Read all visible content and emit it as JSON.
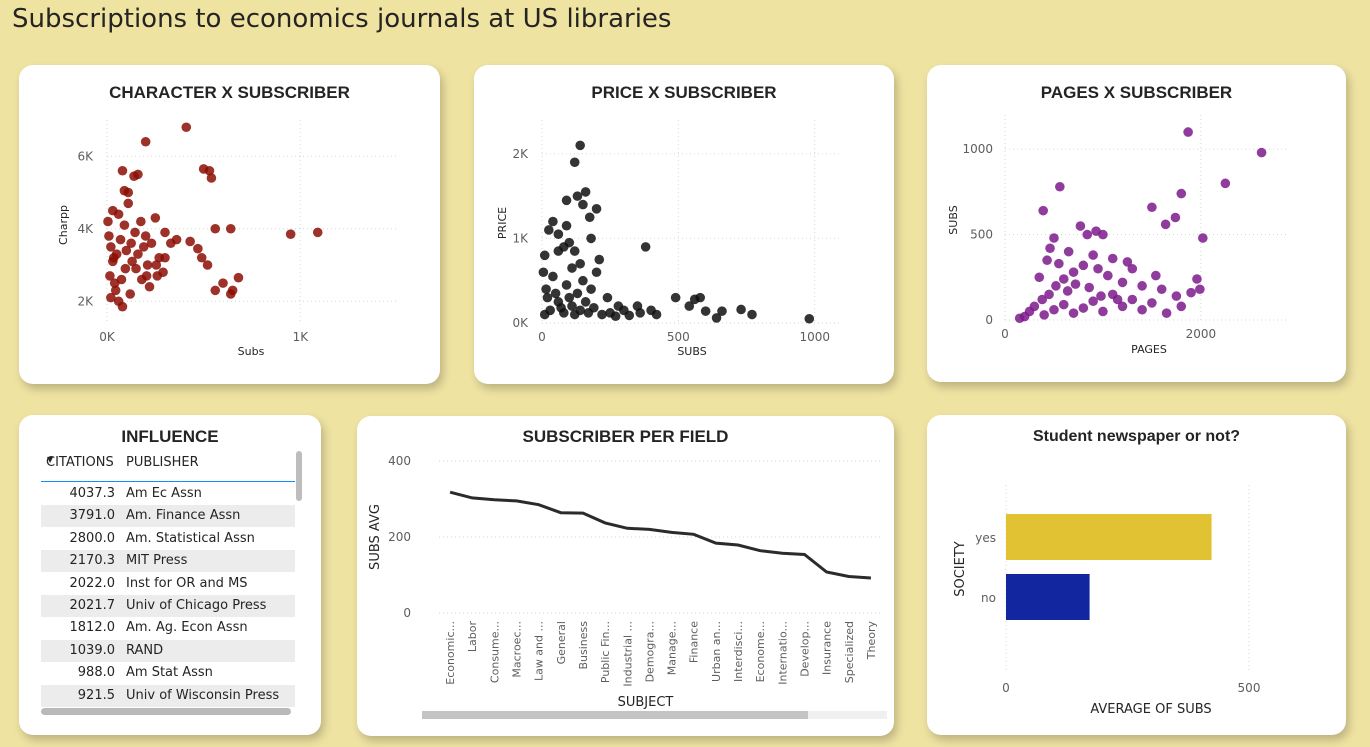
{
  "page": {
    "title": "Subscriptions to economics journals at US libraries"
  },
  "colors": {
    "background": "#efe3a2",
    "character_points": "#8b0e04",
    "price_points": "#111111",
    "pages_points": "#7b1a8b",
    "line": "#2b2b2b",
    "bar_yes": "#e1c233",
    "bar_no": "#1226a0"
  },
  "chart_data": [
    {
      "id": "character",
      "type": "scatter",
      "title": "CHARACTER X SUBSCRIBER",
      "xlabel": "Subs",
      "ylabel": "Charpp",
      "x_ticks": [
        0,
        1000
      ],
      "x_tick_labels": [
        "0K",
        "1K"
      ],
      "y_ticks": [
        2000,
        4000,
        6000
      ],
      "y_tick_labels": [
        "2K",
        "4K",
        "6K"
      ],
      "xlim": [
        0,
        1500
      ],
      "ylim": [
        1400,
        7000
      ],
      "grid": true,
      "points": [
        [
          410,
          6800
        ],
        [
          200,
          6400
        ],
        [
          500,
          5650
        ],
        [
          530,
          5600
        ],
        [
          540,
          5400
        ],
        [
          80,
          5600
        ],
        [
          140,
          5450
        ],
        [
          160,
          5500
        ],
        [
          90,
          5050
        ],
        [
          110,
          5000
        ],
        [
          950,
          3850
        ],
        [
          1090,
          3900
        ],
        [
          560,
          4000
        ],
        [
          640,
          4000
        ],
        [
          360,
          3700
        ],
        [
          430,
          3650
        ],
        [
          470,
          3450
        ],
        [
          490,
          3200
        ],
        [
          520,
          3000
        ],
        [
          600,
          2500
        ],
        [
          680,
          2650
        ],
        [
          650,
          2300
        ],
        [
          640,
          2200
        ],
        [
          560,
          2300
        ],
        [
          250,
          4300
        ],
        [
          300,
          3900
        ],
        [
          330,
          3600
        ],
        [
          300,
          3200
        ],
        [
          260,
          2700
        ],
        [
          220,
          2400
        ],
        [
          180,
          2600
        ],
        [
          150,
          2900
        ],
        [
          120,
          2200
        ],
        [
          80,
          1850
        ],
        [
          60,
          2000
        ],
        [
          40,
          2500
        ],
        [
          30,
          3100
        ],
        [
          20,
          3500
        ],
        [
          10,
          3800
        ],
        [
          5,
          4200
        ],
        [
          15,
          2700
        ],
        [
          50,
          3300
        ],
        [
          70,
          3700
        ],
        [
          90,
          4100
        ],
        [
          100,
          3400
        ],
        [
          130,
          3100
        ],
        [
          160,
          3300
        ],
        [
          190,
          3500
        ],
        [
          210,
          3000
        ],
        [
          230,
          3600
        ],
        [
          270,
          3200
        ],
        [
          290,
          2800
        ],
        [
          60,
          4400
        ],
        [
          110,
          4700
        ],
        [
          30,
          4500
        ],
        [
          200,
          3800
        ],
        [
          45,
          2300
        ],
        [
          75,
          2600
        ],
        [
          95,
          2900
        ],
        [
          125,
          3600
        ],
        [
          145,
          3900
        ],
        [
          175,
          4200
        ],
        [
          205,
          2700
        ],
        [
          255,
          3000
        ],
        [
          20,
          2100
        ],
        [
          35,
          3200
        ]
      ]
    },
    {
      "id": "price",
      "type": "scatter",
      "title": "PRICE X SUBSCRIBER",
      "xlabel": "SUBS",
      "ylabel": "PRICE",
      "x_ticks": [
        0,
        500,
        1000
      ],
      "x_tick_labels": [
        "0",
        "500",
        "1000"
      ],
      "y_ticks": [
        0,
        1000,
        2000
      ],
      "y_tick_labels": [
        "0K",
        "1K",
        "2K"
      ],
      "xlim": [
        0,
        1100
      ],
      "ylim": [
        0,
        2400
      ],
      "grid": true,
      "points": [
        [
          140,
          2100
        ],
        [
          120,
          1900
        ],
        [
          130,
          1500
        ],
        [
          160,
          1550
        ],
        [
          150,
          1400
        ],
        [
          90,
          1450
        ],
        [
          40,
          1200
        ],
        [
          200,
          1350
        ],
        [
          25,
          1100
        ],
        [
          60,
          1050
        ],
        [
          90,
          1150
        ],
        [
          175,
          1250
        ],
        [
          60,
          850
        ],
        [
          80,
          900
        ],
        [
          100,
          950
        ],
        [
          120,
          850
        ],
        [
          180,
          1000
        ],
        [
          210,
          750
        ],
        [
          380,
          900
        ],
        [
          200,
          600
        ],
        [
          140,
          700
        ],
        [
          110,
          650
        ],
        [
          150,
          500
        ],
        [
          180,
          400
        ],
        [
          240,
          300
        ],
        [
          280,
          200
        ],
        [
          300,
          150
        ],
        [
          350,
          200
        ],
        [
          400,
          150
        ],
        [
          490,
          300
        ],
        [
          540,
          200
        ],
        [
          560,
          280
        ],
        [
          580,
          300
        ],
        [
          600,
          140
        ],
        [
          660,
          140
        ],
        [
          640,
          60
        ],
        [
          730,
          160
        ],
        [
          770,
          100
        ],
        [
          980,
          50
        ],
        [
          10,
          800
        ],
        [
          5,
          600
        ],
        [
          15,
          400
        ],
        [
          20,
          300
        ],
        [
          30,
          150
        ],
        [
          10,
          100
        ],
        [
          40,
          550
        ],
        [
          50,
          350
        ],
        [
          60,
          250
        ],
        [
          70,
          180
        ],
        [
          80,
          120
        ],
        [
          90,
          450
        ],
        [
          100,
          300
        ],
        [
          110,
          200
        ],
        [
          120,
          100
        ],
        [
          130,
          350
        ],
        [
          140,
          150
        ],
        [
          160,
          250
        ],
        [
          170,
          120
        ],
        [
          190,
          180
        ],
        [
          220,
          100
        ],
        [
          250,
          120
        ],
        [
          270,
          80
        ],
        [
          320,
          90
        ],
        [
          360,
          120
        ],
        [
          420,
          100
        ]
      ]
    },
    {
      "id": "pages",
      "type": "scatter",
      "title": "PAGES X SUBSCRIBER",
      "xlabel": "PAGES",
      "ylabel": "SUBS",
      "x_ticks": [
        0,
        2000
      ],
      "x_tick_labels": [
        "0",
        "2000"
      ],
      "y_ticks": [
        0,
        500,
        1000
      ],
      "y_tick_labels": [
        "0",
        "500",
        "1000"
      ],
      "xlim": [
        0,
        2900
      ],
      "ylim": [
        0,
        1200
      ],
      "grid": true,
      "points": [
        [
          1870,
          1100
        ],
        [
          2620,
          980
        ],
        [
          2250,
          800
        ],
        [
          560,
          780
        ],
        [
          1800,
          740
        ],
        [
          1500,
          660
        ],
        [
          1740,
          600
        ],
        [
          1640,
          560
        ],
        [
          390,
          640
        ],
        [
          770,
          550
        ],
        [
          930,
          520
        ],
        [
          840,
          500
        ],
        [
          1000,
          500
        ],
        [
          2020,
          480
        ],
        [
          500,
          480
        ],
        [
          460,
          420
        ],
        [
          650,
          400
        ],
        [
          900,
          380
        ],
        [
          1100,
          360
        ],
        [
          1250,
          340
        ],
        [
          1300,
          300
        ],
        [
          1540,
          260
        ],
        [
          1960,
          240
        ],
        [
          1990,
          180
        ],
        [
          1900,
          160
        ],
        [
          1750,
          140
        ],
        [
          1600,
          180
        ],
        [
          1400,
          200
        ],
        [
          1200,
          220
        ],
        [
          1050,
          260
        ],
        [
          950,
          300
        ],
        [
          800,
          320
        ],
        [
          700,
          280
        ],
        [
          600,
          240
        ],
        [
          520,
          200
        ],
        [
          450,
          150
        ],
        [
          380,
          120
        ],
        [
          300,
          80
        ],
        [
          250,
          50
        ],
        [
          200,
          20
        ],
        [
          150,
          10
        ],
        [
          400,
          30
        ],
        [
          500,
          60
        ],
        [
          600,
          90
        ],
        [
          700,
          40
        ],
        [
          800,
          70
        ],
        [
          900,
          110
        ],
        [
          1000,
          50
        ],
        [
          1100,
          150
        ],
        [
          1200,
          80
        ],
        [
          1300,
          120
        ],
        [
          1400,
          60
        ],
        [
          1500,
          100
        ],
        [
          1650,
          40
        ],
        [
          1800,
          80
        ],
        [
          350,
          250
        ],
        [
          430,
          350
        ],
        [
          550,
          330
        ],
        [
          640,
          170
        ],
        [
          720,
          210
        ],
        [
          860,
          190
        ],
        [
          980,
          140
        ],
        [
          1150,
          120
        ]
      ]
    },
    {
      "id": "subscriber_per_field",
      "type": "line",
      "title": "SUBSCRIBER PER FIELD",
      "xlabel": "SUBJECT",
      "ylabel": "SUBS AVG",
      "categories": [
        "Economic...",
        "Labor",
        "Consume...",
        "Macroec...",
        "Law and ...",
        "General",
        "Business",
        "Public Fin...",
        "Industrial ...",
        "Demogra...",
        "Manage...",
        "Finance",
        "Urban an...",
        "Interdisci...",
        "Econome...",
        "Internatio...",
        "Develop...",
        "Insurance",
        "Specialized",
        "Theory"
      ],
      "values": [
        318,
        303,
        298,
        295,
        285,
        264,
        263,
        237,
        223,
        220,
        212,
        207,
        184,
        179,
        164,
        157,
        154,
        108,
        96,
        92
      ],
      "y_ticks": [
        0,
        200,
        400
      ],
      "y_tick_labels": [
        "0",
        "200",
        "400"
      ],
      "ylim": [
        0,
        400
      ],
      "grid": true
    },
    {
      "id": "student_newspaper",
      "type": "bar",
      "orientation": "horizontal",
      "title": "Student newspaper or not?",
      "xlabel": "AVERAGE OF SUBS",
      "ylabel": "SOCIETY",
      "categories": [
        "yes",
        "no"
      ],
      "values": [
        423,
        172
      ],
      "x_ticks": [
        0,
        500
      ],
      "x_tick_labels": [
        "0",
        "500"
      ],
      "xlim": [
        0,
        500
      ],
      "grid": true
    }
  ],
  "influence": {
    "title": "INFLUENCE",
    "columns": [
      "CITATIONS",
      "PUBLISHER"
    ],
    "sort_indicator": "▼",
    "rows": [
      {
        "citations": "4037.3",
        "publisher": "Am Ec Assn"
      },
      {
        "citations": "3791.0",
        "publisher": "Am. Finance Assn"
      },
      {
        "citations": "2800.0",
        "publisher": "Am. Statistical Assn"
      },
      {
        "citations": "2170.3",
        "publisher": "MIT Press"
      },
      {
        "citations": "2022.0",
        "publisher": "Inst for OR and MS"
      },
      {
        "citations": "2021.7",
        "publisher": "Univ of Chicago Press"
      },
      {
        "citations": "1812.0",
        "publisher": "Am. Ag. Econ Assn"
      },
      {
        "citations": "1039.0",
        "publisher": "RAND"
      },
      {
        "citations": "988.0",
        "publisher": "Am Stat Assn"
      },
      {
        "citations": "921.5",
        "publisher": "Univ of Wisconsin Press"
      }
    ]
  }
}
